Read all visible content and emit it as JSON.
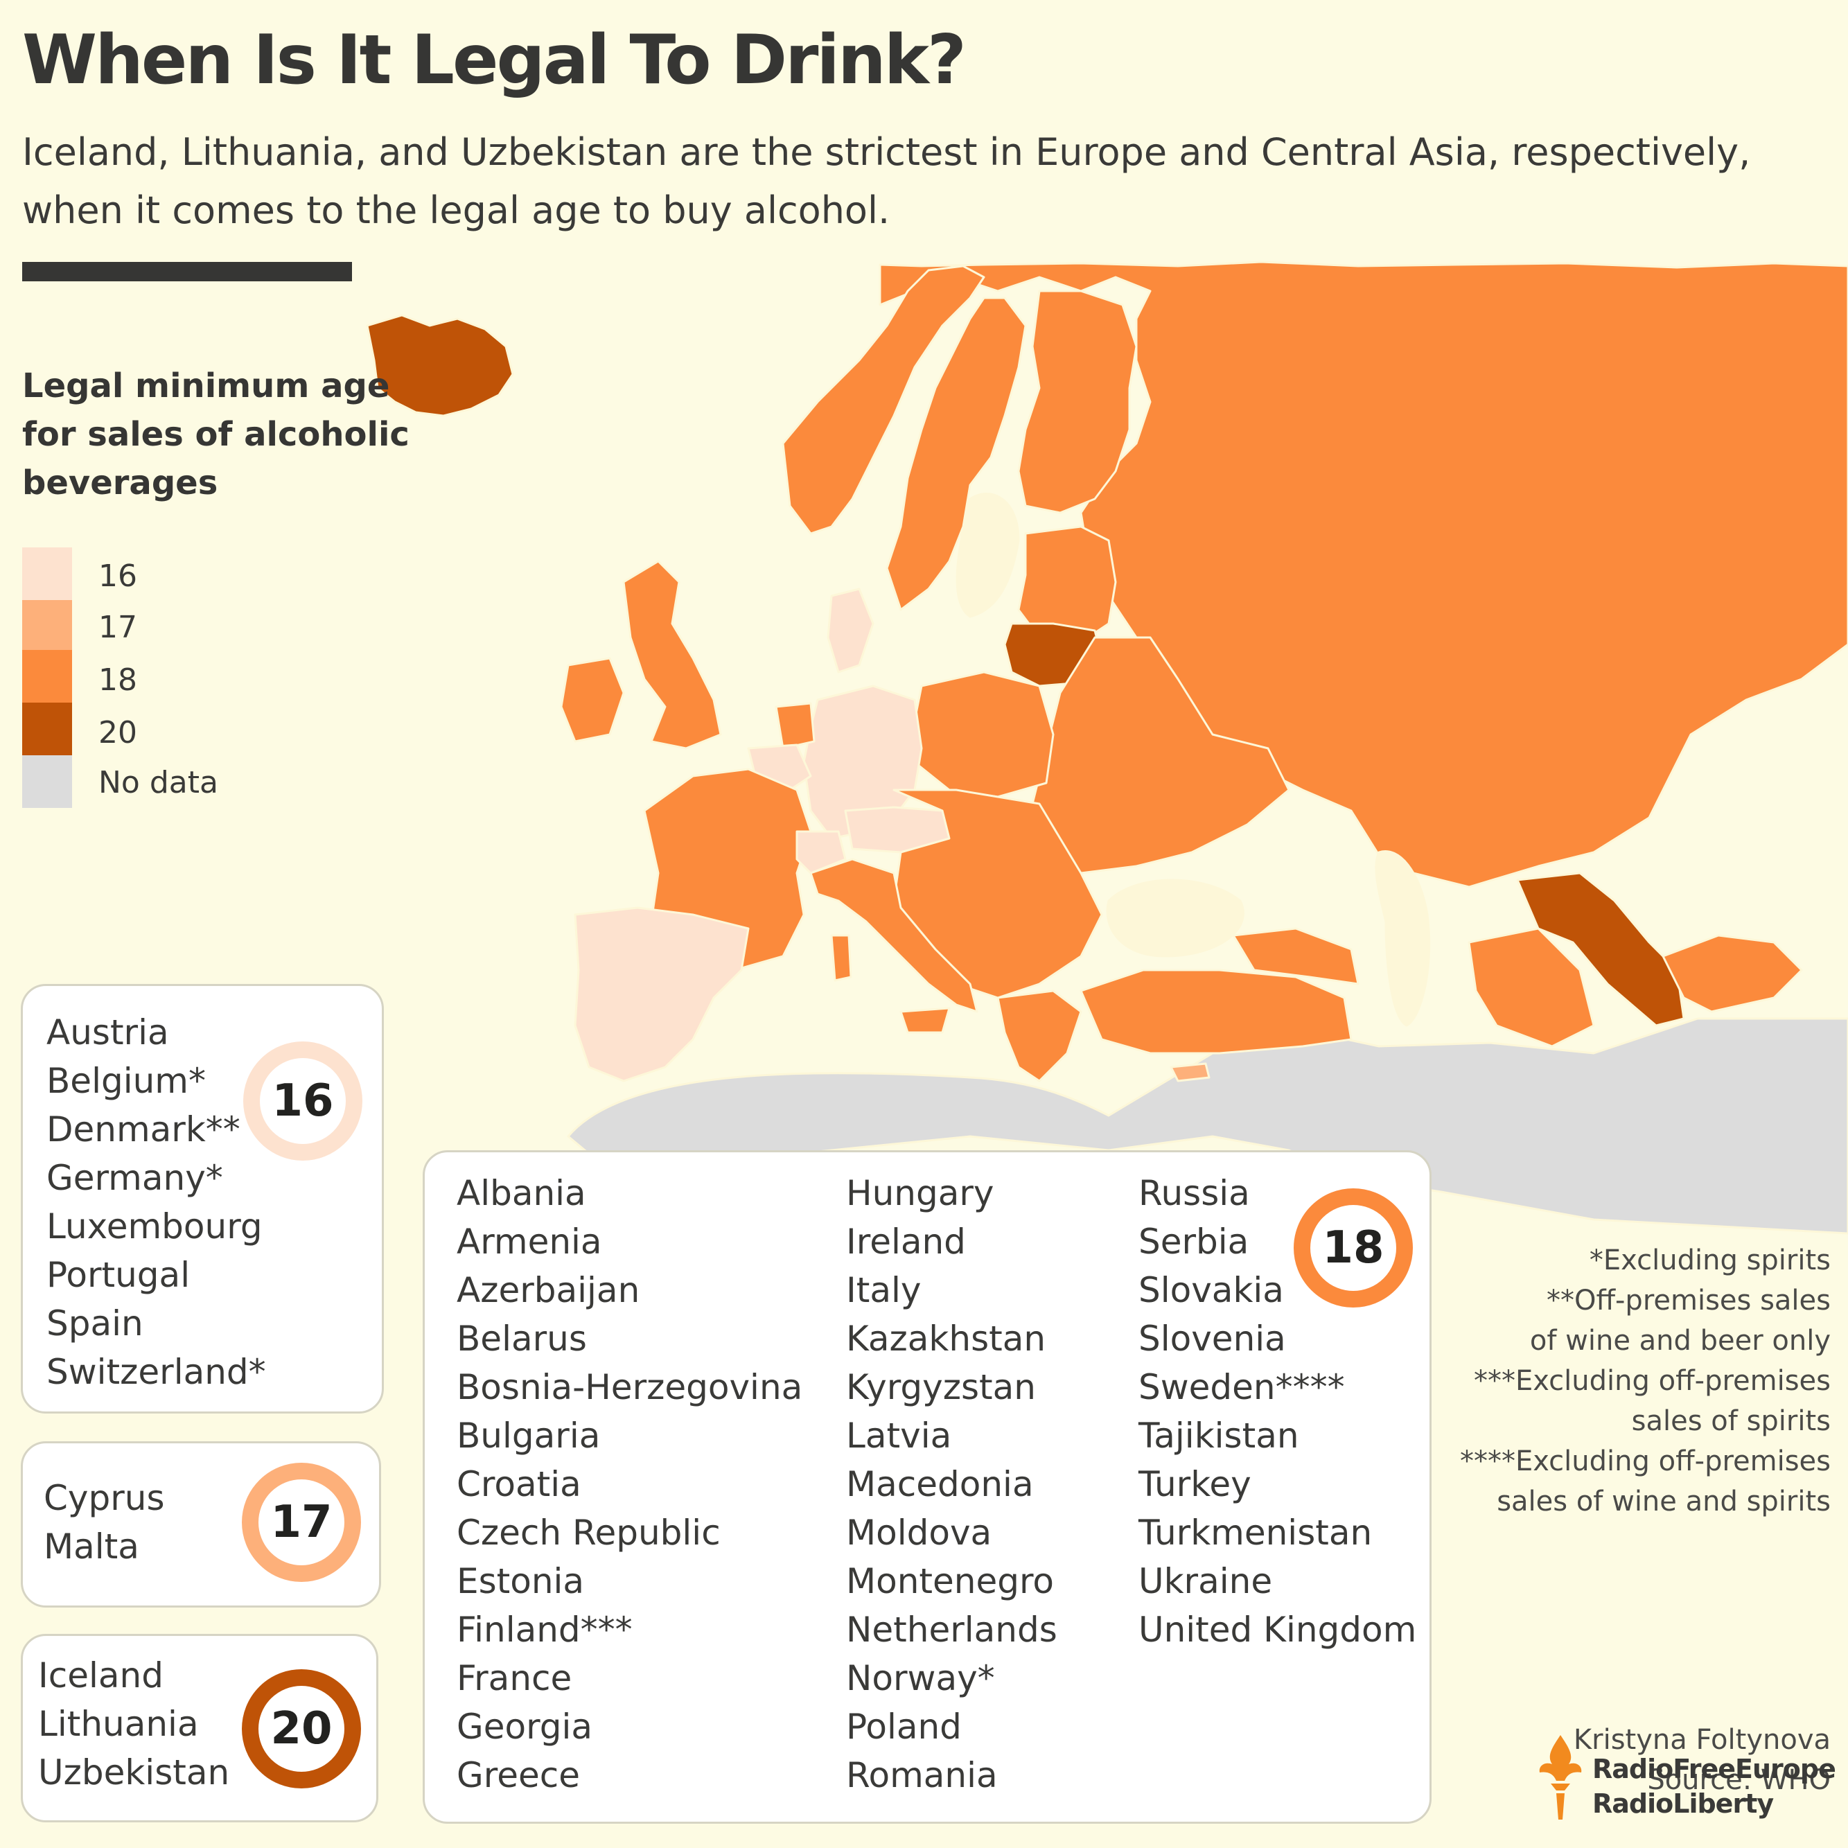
{
  "title": "When Is It Legal To Drink?",
  "subtitle": "Iceland, Lithuania, and Uzbekistan are the strictest in Europe and Central Asia, respectively, when it comes to the legal age to buy alcohol.",
  "legend": {
    "title": "Legal minimum age for sales of alcoholic beverages",
    "items": [
      {
        "label": "16",
        "color": "#fde2cf"
      },
      {
        "label": "17",
        "color": "#fdb07a"
      },
      {
        "label": "18",
        "color": "#fb8a3c"
      },
      {
        "label": "20",
        "color": "#bf5307"
      },
      {
        "label": "No data",
        "color": "#dcdcdc"
      }
    ]
  },
  "colors": {
    "background": "#fdfbe3",
    "land": "#fdf7d8",
    "no_data": "#dcdcdc",
    "age_16": "#fde2cf",
    "age_17": "#fdb07a",
    "age_18": "#fb8a3c",
    "age_20": "#bf5307",
    "text": "#363634"
  },
  "groups": {
    "age16": {
      "badge": "16",
      "countries": [
        "Austria",
        "Belgium*",
        "Denmark**",
        "Germany*",
        "Luxembourg",
        "Portugal",
        "Spain",
        "Switzerland*"
      ]
    },
    "age17": {
      "badge": "17",
      "countries": [
        "Cyprus",
        "Malta"
      ]
    },
    "age20": {
      "badge": "20",
      "countries": [
        "Iceland",
        "Lithuania",
        "Uzbekistan"
      ]
    },
    "age18": {
      "badge": "18",
      "col1": [
        "Albania",
        "Armenia",
        "Azerbaijan",
        "Belarus",
        "Bosnia-Herzegovina",
        "Bulgaria",
        "Croatia",
        "Czech Republic",
        "Estonia",
        "Finland***",
        "France",
        "Georgia",
        "Greece"
      ],
      "col2": [
        "Hungary",
        "Ireland",
        "Italy",
        "Kazakhstan",
        "Kyrgyzstan",
        "Latvia",
        "Macedonia",
        "Moldova",
        "Montenegro",
        "Netherlands",
        "Norway*",
        "Poland",
        "Romania"
      ],
      "col3": [
        "Russia",
        "Serbia",
        "Slovakia",
        "Slovenia",
        "Sweden****",
        "Tajikistan",
        "Turkey",
        "Turkmenistan",
        "Ukraine",
        "United Kingdom"
      ]
    }
  },
  "notes": [
    "*Excluding spirits",
    "**Off-premises sales",
    "of wine and beer only",
    "***Excluding off-premises",
    "sales of spirits",
    "****Excluding off-premises",
    "sales of wine and spirits"
  ],
  "credit": {
    "author": "Kristyna Foltynova",
    "source": "Source: WHO"
  },
  "logo": {
    "line1": "RadioFreeEurope",
    "line2": "RadioLiberty",
    "icon": "torch-icon"
  }
}
